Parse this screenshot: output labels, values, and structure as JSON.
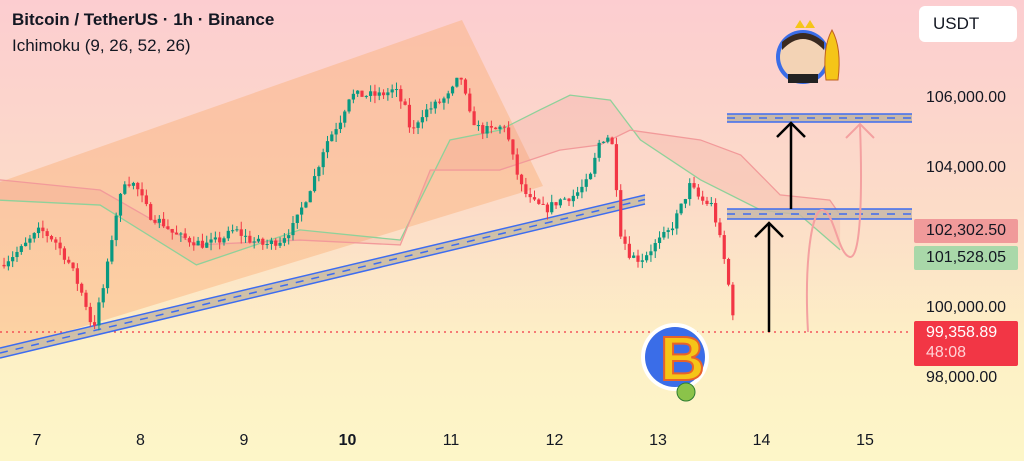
{
  "header": {
    "title": "Bitcoin / TetherUS · 1h · Binance",
    "indicator": "Ichimoku (9, 26, 52, 26)",
    "currency": "USDT"
  },
  "colors": {
    "up": "#089981",
    "down": "#f23645",
    "span_a": "#8fd19a",
    "span_b": "#f29a9a",
    "trendline": "#3d6cf0",
    "channel": "#fbb98a"
  },
  "chart_data": {
    "type": "candlestick",
    "symbol": "BTCUSDT",
    "timeframe": "1h",
    "x_unit": "day of month",
    "xlim": [
      6.64,
      15.5
    ],
    "ylim": [
      97400,
      107200
    ],
    "x_ticks": [
      {
        "v": 7,
        "label": "7"
      },
      {
        "v": 8,
        "label": "8"
      },
      {
        "v": 9,
        "label": "9"
      },
      {
        "v": 10,
        "label": "10",
        "bold": true
      },
      {
        "v": 11,
        "label": "11"
      },
      {
        "v": 12,
        "label": "12"
      },
      {
        "v": 13,
        "label": "13"
      },
      {
        "v": 14,
        "label": "14"
      },
      {
        "v": 15,
        "label": "15"
      }
    ],
    "y_ticks": [
      {
        "v": 106000,
        "label": "106,000.00"
      },
      {
        "v": 104000,
        "label": "104,000.00"
      },
      {
        "v": 100000,
        "label": "100,000.00"
      },
      {
        "v": 98000,
        "label": "98,000.00"
      }
    ],
    "price_path": [
      [
        6.64,
        101260
      ],
      [
        6.84,
        101690
      ],
      [
        7.03,
        102260
      ],
      [
        7.17,
        101970
      ],
      [
        7.32,
        101260
      ],
      [
        7.46,
        100260
      ],
      [
        7.54,
        99400
      ],
      [
        7.66,
        100830
      ],
      [
        7.75,
        102540
      ],
      [
        7.85,
        103690
      ],
      [
        7.95,
        103540
      ],
      [
        8.09,
        102690
      ],
      [
        8.24,
        102400
      ],
      [
        8.33,
        102110
      ],
      [
        8.48,
        101970
      ],
      [
        8.62,
        101830
      ],
      [
        8.77,
        101970
      ],
      [
        8.91,
        102260
      ],
      [
        9.06,
        101970
      ],
      [
        9.2,
        101830
      ],
      [
        9.35,
        101970
      ],
      [
        9.49,
        102400
      ],
      [
        9.59,
        103110
      ],
      [
        9.69,
        103830
      ],
      [
        9.78,
        104690
      ],
      [
        9.93,
        105400
      ],
      [
        10.02,
        106110
      ],
      [
        10.17,
        106110
      ],
      [
        10.31,
        106110
      ],
      [
        10.46,
        106260
      ],
      [
        10.56,
        105690
      ],
      [
        10.62,
        104970
      ],
      [
        10.7,
        105540
      ],
      [
        10.85,
        105830
      ],
      [
        10.99,
        106110
      ],
      [
        11.09,
        106690
      ],
      [
        11.18,
        105540
      ],
      [
        11.28,
        105110
      ],
      [
        11.43,
        105110
      ],
      [
        11.52,
        105260
      ],
      [
        11.59,
        104400
      ],
      [
        11.67,
        103540
      ],
      [
        11.76,
        103110
      ],
      [
        11.91,
        102830
      ],
      [
        12.05,
        103110
      ],
      [
        12.2,
        103260
      ],
      [
        12.34,
        103690
      ],
      [
        12.44,
        104830
      ],
      [
        12.54,
        104970
      ],
      [
        12.58,
        104260
      ],
      [
        12.63,
        102260
      ],
      [
        12.73,
        101540
      ],
      [
        12.83,
        101400
      ],
      [
        12.97,
        101830
      ],
      [
        13.12,
        102260
      ],
      [
        13.21,
        102830
      ],
      [
        13.31,
        103540
      ],
      [
        13.41,
        103110
      ],
      [
        13.52,
        102970
      ],
      [
        13.58,
        102260
      ],
      [
        13.65,
        101260
      ],
      [
        13.72,
        99970
      ],
      [
        13.76,
        99360
      ]
    ],
    "ichimoku": {
      "span_a": [
        [
          6.64,
          103110
        ],
        [
          7.61,
          102970
        ],
        [
          8.54,
          101260
        ],
        [
          9.54,
          102260
        ],
        [
          10.51,
          101970
        ],
        [
          10.99,
          104830
        ],
        [
          11.47,
          105110
        ],
        [
          11.86,
          105690
        ],
        [
          12.15,
          106110
        ],
        [
          12.54,
          105970
        ],
        [
          12.83,
          104830
        ],
        [
          13.41,
          103690
        ],
        [
          13.99,
          102830
        ],
        [
          14.37,
          102690
        ],
        [
          14.76,
          101690
        ]
      ],
      "span_b": [
        [
          6.64,
          103690
        ],
        [
          7.61,
          103400
        ],
        [
          8.54,
          101830
        ],
        [
          9.54,
          101970
        ],
        [
          10.51,
          101830
        ],
        [
          10.8,
          103970
        ],
        [
          11.47,
          103970
        ],
        [
          12.05,
          104540
        ],
        [
          12.44,
          104690
        ],
        [
          12.73,
          105110
        ],
        [
          13.41,
          104830
        ],
        [
          13.8,
          104400
        ],
        [
          14.18,
          103260
        ],
        [
          14.66,
          103110
        ],
        [
          14.76,
          102690
        ]
      ]
    },
    "levels": {
      "resistance_upper": 105540,
      "resistance_lower": 102650
    },
    "price_labels": [
      {
        "label": "102,302.50",
        "color": "#f09a9a"
      },
      {
        "label": "101,528.05",
        "color": "#a9d8a9"
      }
    ],
    "last_price": {
      "value": 99358.89,
      "label": "99,358.89",
      "countdown": "48:08"
    }
  }
}
